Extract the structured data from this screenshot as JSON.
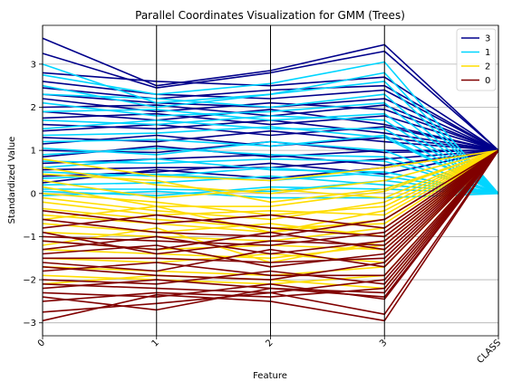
{
  "chart_data": {
    "type": "parallel_coordinates",
    "title": "Parallel Coordinates Visualization for GMM (Trees)",
    "xlabel": "Feature",
    "ylabel": "Standardized Value",
    "axes": [
      "0",
      "1",
      "2",
      "3",
      "CLASS"
    ],
    "ylim": [
      -3.3,
      3.9
    ],
    "yticks": [
      -3,
      -2,
      -1,
      0,
      1,
      2,
      3
    ],
    "ytick_labels": [
      "−3",
      "−2",
      "−1",
      "0",
      "1",
      "2",
      "3"
    ],
    "grid": true,
    "legend_position": "top-right",
    "series": [
      {
        "name": "3",
        "color": "#00008b",
        "class_value": 1.0,
        "lines": [
          [
            3.6,
            2.5,
            2.85,
            3.45
          ],
          [
            3.25,
            2.45,
            2.8,
            3.3
          ],
          [
            2.8,
            2.6,
            2.5,
            2.7
          ],
          [
            2.6,
            2.3,
            2.2,
            2.4
          ],
          [
            2.45,
            2.2,
            2.4,
            2.5
          ],
          [
            2.3,
            2.1,
            2.0,
            2.2
          ],
          [
            2.2,
            1.9,
            2.1,
            1.95
          ],
          [
            2.0,
            2.05,
            1.8,
            2.05
          ],
          [
            1.9,
            1.7,
            1.95,
            1.6
          ],
          [
            1.75,
            1.85,
            1.6,
            1.8
          ],
          [
            1.6,
            1.5,
            1.7,
            1.4
          ],
          [
            1.45,
            1.6,
            1.35,
            1.55
          ],
          [
            1.3,
            1.2,
            1.45,
            1.2
          ],
          [
            1.15,
            1.35,
            1.1,
            1.3
          ],
          [
            1.0,
            0.95,
            1.2,
            0.95
          ],
          [
            0.85,
            1.1,
            0.85,
            1.0
          ],
          [
            0.7,
            0.8,
            0.9,
            0.65
          ],
          [
            0.55,
            0.6,
            0.6,
            0.8
          ],
          [
            0.4,
            0.5,
            0.7,
            0.45
          ],
          [
            0.25,
            0.55,
            0.35,
            0.6
          ]
        ]
      },
      {
        "name": "1",
        "color": "#00d5ff",
        "class_value": 0.0,
        "lines": [
          [
            3.0,
            2.1,
            2.3,
            2.8
          ],
          [
            2.75,
            2.3,
            2.55,
            3.05
          ],
          [
            2.5,
            2.0,
            2.3,
            2.6
          ],
          [
            2.3,
            2.2,
            2.0,
            2.3
          ],
          [
            2.1,
            1.8,
            1.9,
            2.1
          ],
          [
            1.9,
            1.95,
            1.7,
            1.85
          ],
          [
            1.7,
            1.6,
            1.8,
            1.7
          ],
          [
            1.5,
            1.7,
            1.5,
            1.5
          ],
          [
            1.35,
            1.4,
            1.55,
            1.3
          ],
          [
            1.2,
            1.25,
            1.1,
            1.35
          ],
          [
            1.05,
            0.9,
            1.2,
            1.0
          ],
          [
            0.9,
            1.05,
            0.9,
            0.85
          ],
          [
            0.75,
            0.7,
            0.8,
            0.75
          ],
          [
            0.6,
            0.8,
            0.55,
            0.5
          ],
          [
            0.5,
            0.4,
            0.6,
            0.4
          ],
          [
            0.35,
            0.45,
            0.3,
            0.5
          ],
          [
            0.2,
            0.25,
            0.4,
            0.2
          ],
          [
            0.1,
            0.1,
            0.05,
            0.3
          ],
          [
            0.05,
            -0.05,
            0.15,
            0.1
          ],
          [
            -0.05,
            0.05,
            -0.1,
            -0.1
          ]
        ]
      },
      {
        "name": "2",
        "color": "#ffdd00",
        "class_value": 1.0,
        "lines": [
          [
            0.8,
            0.4,
            0.3,
            0.6
          ],
          [
            0.6,
            0.2,
            0.0,
            0.3
          ],
          [
            0.45,
            0.3,
            -0.2,
            0.1
          ],
          [
            0.3,
            -0.1,
            0.1,
            -0.1
          ],
          [
            0.15,
            -0.3,
            -0.3,
            0.05
          ],
          [
            0.0,
            -0.2,
            -0.5,
            -0.3
          ],
          [
            -0.2,
            -0.5,
            -0.4,
            -0.5
          ],
          [
            -0.35,
            -0.6,
            -0.8,
            -0.7
          ],
          [
            -0.5,
            -0.7,
            -0.9,
            -0.6
          ],
          [
            -0.7,
            -0.9,
            -0.7,
            -1.0
          ],
          [
            -0.9,
            -1.0,
            -1.1,
            -0.8
          ],
          [
            -1.1,
            -1.3,
            -1.2,
            -1.3
          ],
          [
            -1.3,
            -1.4,
            -1.5,
            -1.2
          ],
          [
            -1.5,
            -1.6,
            -1.4,
            -1.6
          ],
          [
            -1.7,
            -1.8,
            -1.9,
            -1.7
          ],
          [
            -1.9,
            -2.0,
            -2.1,
            -1.9
          ],
          [
            -2.1,
            -1.9,
            -2.0,
            -2.2
          ],
          [
            -0.1,
            -0.4,
            -0.6,
            -0.2
          ],
          [
            -0.6,
            -0.3,
            -0.9,
            -0.4
          ],
          [
            -1.2,
            -0.8,
            -1.6,
            -1.1
          ]
        ]
      },
      {
        "name": "0",
        "color": "#800000",
        "class_value": 1.0,
        "lines": [
          [
            -0.4,
            -0.7,
            -0.5,
            -0.8
          ],
          [
            -0.6,
            -0.9,
            -1.0,
            -0.6
          ],
          [
            -0.8,
            -0.5,
            -0.8,
            -1.0
          ],
          [
            -1.0,
            -1.1,
            -1.2,
            -0.9
          ],
          [
            -1.1,
            -1.3,
            -0.9,
            -1.3
          ],
          [
            -1.3,
            -1.0,
            -1.4,
            -1.1
          ],
          [
            -1.5,
            -1.5,
            -1.6,
            -1.5
          ],
          [
            -1.6,
            -1.8,
            -1.3,
            -1.7
          ],
          [
            -1.8,
            -1.6,
            -1.9,
            -1.9
          ],
          [
            -2.0,
            -2.1,
            -1.8,
            -2.1
          ],
          [
            -2.2,
            -2.0,
            -2.2,
            -2.3
          ],
          [
            -2.3,
            -2.4,
            -2.1,
            -2.45
          ],
          [
            -2.5,
            -2.3,
            -2.4,
            -2.2
          ],
          [
            -2.75,
            -2.55,
            -2.3,
            -2.8
          ],
          [
            -2.95,
            -2.35,
            -2.5,
            -2.95
          ],
          [
            -2.4,
            -2.7,
            -2.2,
            -2.4
          ],
          [
            -1.4,
            -1.2,
            -1.7,
            -1.4
          ],
          [
            -0.9,
            -1.4,
            -1.1,
            -1.2
          ],
          [
            -2.1,
            -2.2,
            -2.3,
            -2.0
          ],
          [
            -1.7,
            -1.9,
            -2.0,
            -1.6
          ]
        ]
      }
    ]
  }
}
